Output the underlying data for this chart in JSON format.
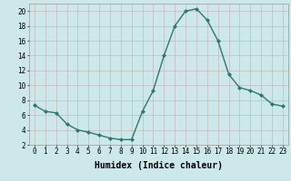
{
  "x": [
    0,
    1,
    2,
    3,
    4,
    5,
    6,
    7,
    8,
    9,
    10,
    11,
    12,
    13,
    14,
    15,
    16,
    17,
    18,
    19,
    20,
    21,
    22,
    23
  ],
  "y": [
    7.3,
    6.5,
    6.3,
    4.8,
    4.0,
    3.7,
    3.3,
    2.9,
    2.7,
    2.7,
    6.5,
    9.3,
    14.0,
    18.0,
    20.0,
    20.3,
    18.8,
    16.0,
    11.5,
    9.7,
    9.3,
    8.7,
    7.5,
    7.2
  ],
  "line_color": "#2a7a6e",
  "marker": "D",
  "marker_size": 2.0,
  "line_width": 1.0,
  "xlabel": "Humidex (Indice chaleur)",
  "xlabel_fontsize": 7,
  "ylim": [
    2,
    21
  ],
  "xlim": [
    -0.5,
    23.5
  ],
  "yticks": [
    2,
    4,
    6,
    8,
    10,
    12,
    14,
    16,
    18,
    20
  ],
  "xticks": [
    0,
    1,
    2,
    3,
    4,
    5,
    6,
    7,
    8,
    9,
    10,
    11,
    12,
    13,
    14,
    15,
    16,
    17,
    18,
    19,
    20,
    21,
    22,
    23
  ],
  "xtick_labels": [
    "0",
    "1",
    "2",
    "3",
    "4",
    "5",
    "6",
    "7",
    "8",
    "9",
    "10",
    "11",
    "12",
    "13",
    "14",
    "15",
    "16",
    "17",
    "18",
    "19",
    "20",
    "21",
    "22",
    "23"
  ],
  "background_color": "#cce8e8",
  "grid_color": "#c8b8b8",
  "tick_fontsize": 5.5
}
